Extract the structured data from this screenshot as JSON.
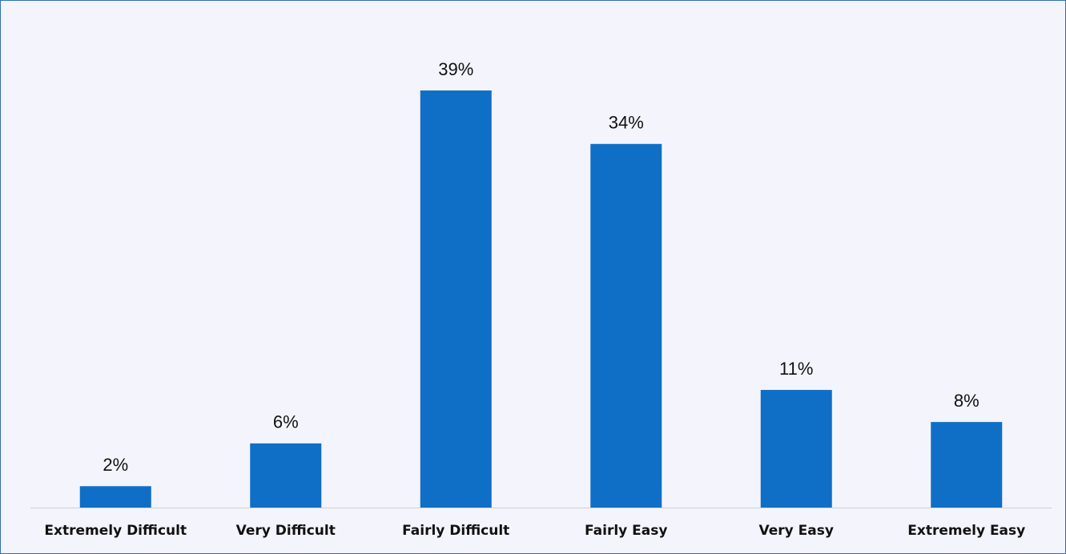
{
  "chart_data": {
    "type": "bar",
    "categories": [
      "Extremely Difficult",
      "Very Difficult",
      "Fairly Difficult",
      "Fairly Easy",
      "Very Easy",
      "Extremely Easy"
    ],
    "values": [
      2,
      6,
      39,
      34,
      11,
      8
    ],
    "value_labels": [
      "2%",
      "6%",
      "39%",
      "34%",
      "11%",
      "8%"
    ],
    "color": "#0f6fc6"
  }
}
